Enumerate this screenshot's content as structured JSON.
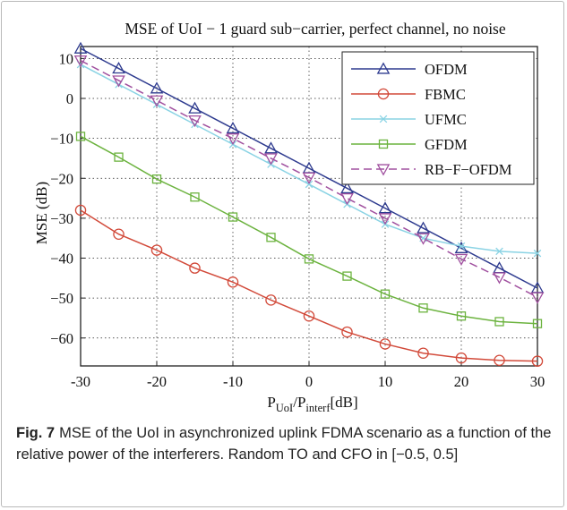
{
  "chart_data": {
    "type": "line",
    "title": "MSE of UoI − 1 guard sub−carrier, perfect channel, no noise",
    "xlabel": {
      "main": "P",
      "sub1": "UoI",
      "sep": "/P",
      "sub2": "interf",
      "unit": "[dB]"
    },
    "ylabel": "MSE (dB)",
    "xlim": [
      -30,
      30
    ],
    "ylim": [
      -67,
      13
    ],
    "xticks": [
      "-30",
      "-20",
      "-10",
      "0",
      "10",
      "20",
      "30"
    ],
    "xtick_values": [
      -30,
      -20,
      -10,
      0,
      10,
      20,
      30
    ],
    "yticks": [
      "10",
      "0",
      "−10",
      "−20",
      "−30",
      "−40",
      "−50",
      "−60"
    ],
    "ytick_values": [
      10,
      0,
      -10,
      -20,
      -30,
      -40,
      -50,
      -60
    ],
    "grid": true,
    "legend_position": "top-right",
    "x": [
      -30,
      -25,
      -20,
      -15,
      -10,
      -5,
      0,
      5,
      10,
      15,
      20,
      25,
      30
    ],
    "series": [
      {
        "name": "OFDM",
        "color": "#2e3b8f",
        "marker": "triangle-up",
        "values": [
          12.5,
          7.5,
          2.5,
          -2.5,
          -7.5,
          -12.5,
          -17.5,
          -22.5,
          -27.5,
          -32.5,
          -37.5,
          -42.5,
          -47.5
        ]
      },
      {
        "name": "FBMC",
        "color": "#d24a3a",
        "marker": "circle",
        "values": [
          -28,
          -34,
          -38,
          -42.5,
          -46,
          -50.5,
          -54.5,
          -58.5,
          -61.5,
          -63.8,
          -65,
          -65.6,
          -65.8
        ]
      },
      {
        "name": "UFMC",
        "color": "#8ad3e4",
        "marker": "x",
        "values": [
          8.5,
          3.5,
          -1.5,
          -6.5,
          -11.5,
          -16.5,
          -21.5,
          -26.5,
          -31.5,
          -35,
          -37,
          -38.3,
          -38.8
        ]
      },
      {
        "name": "GFDM",
        "color": "#6cb33f",
        "marker": "square",
        "values": [
          -9.5,
          -14.7,
          -20.2,
          -24.7,
          -29.7,
          -34.8,
          -40.2,
          -44.5,
          -49,
          -52.5,
          -54.5,
          -55.9,
          -56.4
        ]
      },
      {
        "name": "RB−F−OFDM",
        "color": "#a0509f",
        "marker": "triangle-down",
        "dashed": true,
        "values": [
          9.5,
          4.5,
          -0.5,
          -5.5,
          -10,
          -15,
          -19.8,
          -25,
          -30,
          -35,
          -40.2,
          -44.8,
          -49.8
        ]
      }
    ]
  },
  "caption": {
    "label": "Fig. 7",
    "text": "MSE of the UoI in asynchronized uplink FDMA scenario as a function of the relative power of the interferers. Random TO and CFO in [−0.5, 0.5]"
  }
}
